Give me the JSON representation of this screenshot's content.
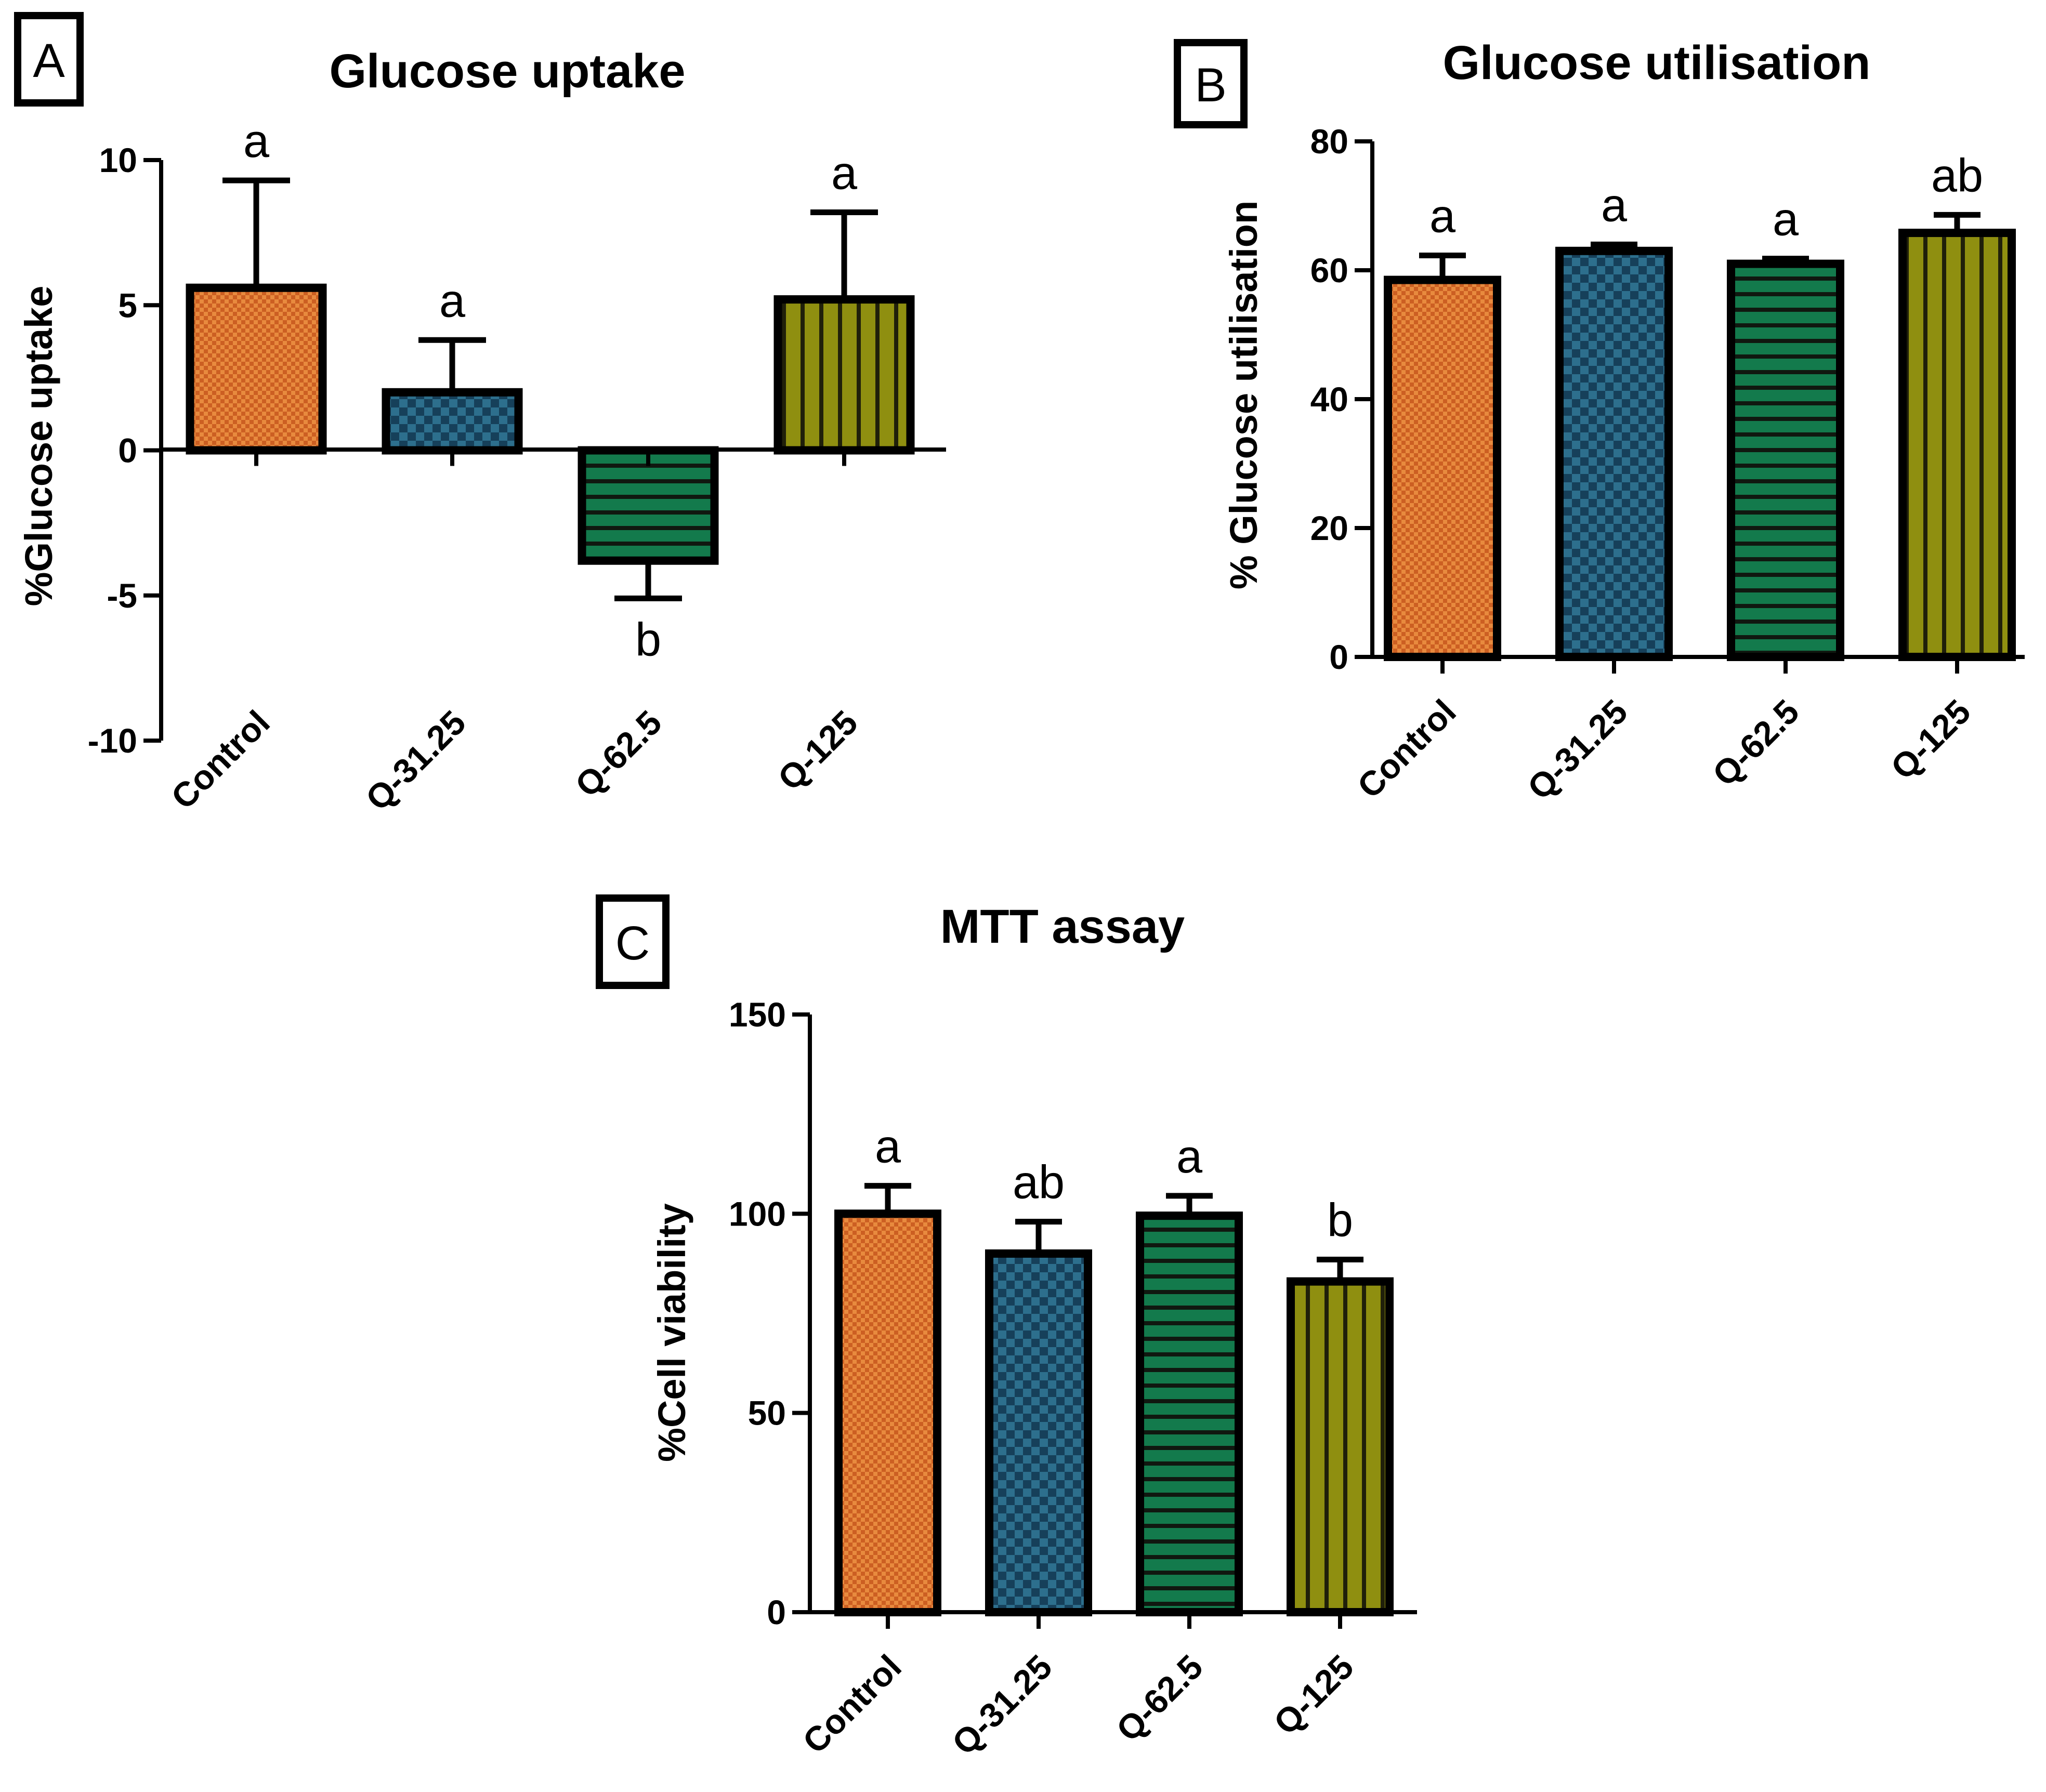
{
  "chart_data": [
    {
      "panel": "A",
      "type": "bar",
      "title": "Glucose uptake",
      "xlabel": "",
      "ylabel": "%Glucose uptake",
      "categories": [
        "Control",
        "Q-31.25",
        "Q-62.5",
        "Q-125"
      ],
      "values": [
        5.6,
        2.0,
        -3.8,
        5.2
      ],
      "errors": [
        3.7,
        1.8,
        1.3,
        3.0
      ],
      "significance": [
        "a",
        "a",
        "b",
        "a"
      ],
      "ylim": [
        -10,
        10
      ],
      "yticks": [
        10,
        5,
        0,
        -5,
        -10
      ],
      "ytick_labels": [
        "10",
        "5",
        "0",
        "-5",
        "-10"
      ],
      "grid": false
    },
    {
      "panel": "B",
      "type": "bar",
      "title": "Glucose utilisation",
      "xlabel": "",
      "ylabel": "% Glucose utilisation",
      "categories": [
        "Control",
        "Q-31.25",
        "Q-62.5",
        "Q-125"
      ],
      "values": [
        58.5,
        63.0,
        61.0,
        65.8
      ],
      "errors": [
        3.8,
        1.0,
        0.8,
        2.8
      ],
      "significance": [
        "a",
        "a",
        "a",
        "ab"
      ],
      "ylim": [
        0,
        80
      ],
      "yticks": [
        80,
        60,
        40,
        20,
        0
      ],
      "ytick_labels": [
        "80",
        "60",
        "40",
        "20",
        "0"
      ],
      "grid": false
    },
    {
      "panel": "C",
      "type": "bar",
      "title": "MTT assay",
      "xlabel": "",
      "ylabel": "%Cell viability",
      "categories": [
        "Control",
        "Q-31.25",
        "Q-62.5",
        "Q-125"
      ],
      "values": [
        100,
        90,
        99.5,
        83
      ],
      "errors": [
        7.0,
        8.0,
        5.0,
        5.5
      ],
      "significance": [
        "a",
        "ab",
        "a",
        "b"
      ],
      "ylim": [
        0,
        150
      ],
      "yticks": [
        150,
        100,
        50,
        0
      ],
      "ytick_labels": [
        "150",
        "100",
        "50",
        "0"
      ],
      "grid": false
    }
  ],
  "colors": {
    "control": "#cc5f22",
    "q31": "#1f5470",
    "q62": "#116b42",
    "q125": "#8a8a0f",
    "axis": "#000000"
  }
}
